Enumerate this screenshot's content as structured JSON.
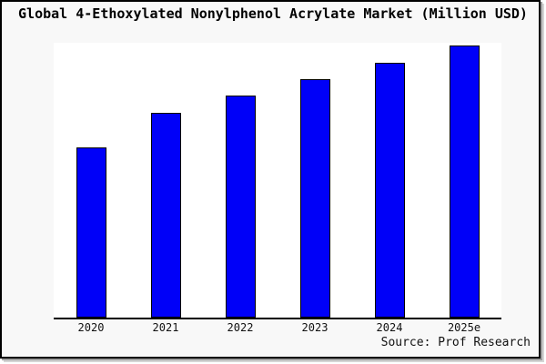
{
  "colors": {
    "bar_fill": "#0000f8",
    "bar_border": "#000000",
    "figure_bg": "#f8f8f8",
    "plot_bg": "#ffffff",
    "axis": "#000000",
    "frame": "#000000"
  },
  "chart_data": {
    "type": "bar",
    "title": "Global 4-Ethoxylated Nonylphenol Acrylate Market (Million USD)",
    "categories": [
      "2020",
      "2021",
      "2022",
      "2023",
      "2024",
      "2025e"
    ],
    "values": [
      62.5,
      75.2,
      81.5,
      87.7,
      93.8,
      100
    ],
    "values_note": "relative index, 2025e = 100 (no numeric y-axis shown in chart)",
    "xlabel": "",
    "ylabel": "",
    "ylim": [
      0,
      101
    ],
    "grid": false,
    "legend": "none",
    "y_axis_visible": false,
    "annotation": "Source: Prof Research"
  }
}
